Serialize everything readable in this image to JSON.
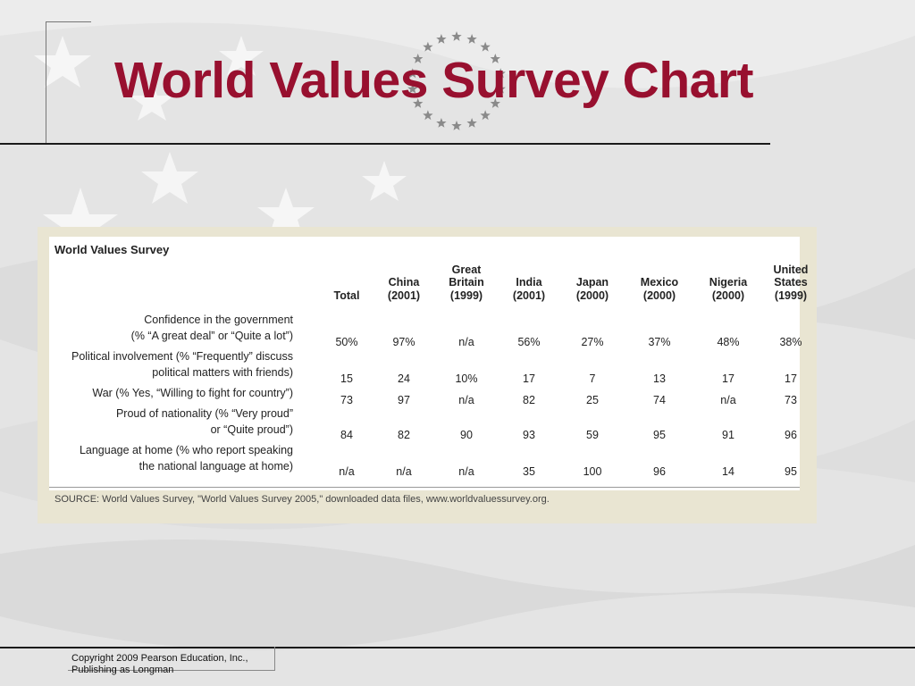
{
  "slide": {
    "title": "World Values Survey Chart",
    "copyright_line1": "Copyright 2009 Pearson Education, Inc.,",
    "copyright_line2": "Publishing as Longman"
  },
  "table": {
    "title": "World Values Survey",
    "columns": [
      "Total",
      "China\n(2001)",
      "Great\nBritain\n(1999)",
      "India\n(2001)",
      "Japan\n(2000)",
      "Mexico\n(2000)",
      "Nigeria\n(2000)",
      "United\nStates\n(1999)"
    ],
    "rows": [
      {
        "label": "Confidence in the government\n(% “A great deal” or “Quite a lot”)",
        "values": [
          "50%",
          "97%",
          "n/a",
          "56%",
          "27%",
          "37%",
          "48%",
          "38%"
        ]
      },
      {
        "label": "Political involvement (% “Frequently” discuss\npolitical matters with friends)",
        "values": [
          "15",
          "24",
          "10%",
          "17",
          "7",
          "13",
          "17",
          "17"
        ]
      },
      {
        "label": "War (% Yes, “Willing to fight for country”)",
        "values": [
          "73",
          "97",
          "n/a",
          "82",
          "25",
          "74",
          "n/a",
          "73"
        ]
      },
      {
        "label": "Proud of nationality (% “Very proud”\nor “Quite proud”)",
        "values": [
          "84",
          "82",
          "90",
          "93",
          "59",
          "95",
          "91",
          "96"
        ]
      },
      {
        "label": "Language at home (% who report speaking\nthe national language at home)",
        "values": [
          "n/a",
          "n/a",
          "n/a",
          "35",
          "100",
          "96",
          "14",
          "95"
        ]
      }
    ],
    "source": "SOURCE: World Values Survey, \"World Values Survey 2005,\" downloaded data files, www.worldvaluessurvey.org."
  },
  "colors": {
    "title": "#98102f",
    "panel": "#e9e5d2",
    "background": "#ececec"
  }
}
